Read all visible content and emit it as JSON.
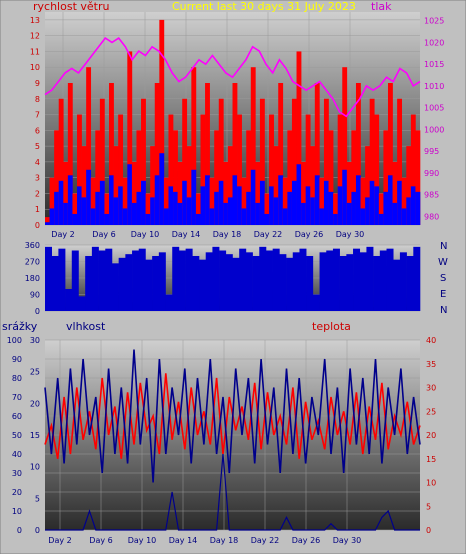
{
  "colors": {
    "frame": "#c0c0c0",
    "wind": "#ff0000",
    "wind_gust": "#0000ff",
    "pressure": "#ff00ff",
    "direction": "#0000cc",
    "humidity": "#00008b",
    "temperature": "#ff0000",
    "rain": "#00008b",
    "title": "#ffff00",
    "label_left": "#cc0000",
    "axis_text": "#000080"
  },
  "header": {
    "wind_label": "rychlost větru",
    "title": "Current last 30 days 31 July 2023",
    "pressure_label": "tlak"
  },
  "bottom_header": {
    "rain_label": "srážky",
    "humidity_label": "vlhkost",
    "temp_label": "teplota"
  },
  "compass": [
    "N",
    "W",
    "S",
    "E",
    "N"
  ],
  "chart_data": [
    {
      "type": "line",
      "name": "wind-pressure",
      "x_ticks": [
        "Day 2",
        "Day 6",
        "Day 10",
        "Day 14",
        "Day 18",
        "Day 22",
        "Day 26",
        "Day 30"
      ],
      "y_left_ticks": [
        0,
        1,
        2,
        3,
        4,
        5,
        6,
        7,
        8,
        9,
        10,
        11,
        12,
        13
      ],
      "y_left_range": [
        0,
        13.5
      ],
      "y_right_ticks": [
        980,
        985,
        990,
        995,
        1000,
        1005,
        1010,
        1015,
        1020,
        1025
      ],
      "y_right_range": [
        978,
        1027
      ],
      "series": [
        {
          "name": "rychlost větru",
          "axis": "left",
          "values": [
            0.5,
            3,
            6,
            8,
            4,
            9,
            2,
            7,
            5,
            10,
            3,
            6,
            8,
            2,
            9,
            5,
            7,
            3,
            11,
            4,
            6,
            8,
            2,
            5,
            9,
            13,
            3,
            7,
            6,
            4,
            8,
            5,
            10,
            2,
            7,
            9,
            3,
            6,
            8,
            4,
            5,
            9,
            7,
            3,
            6,
            10,
            4,
            8,
            2,
            7,
            5,
            9,
            3,
            6,
            8,
            11,
            4,
            7,
            5,
            9,
            3,
            8,
            6,
            2,
            7,
            10,
            4,
            6,
            9,
            3,
            5,
            8,
            7,
            2,
            6,
            9,
            4,
            8,
            3,
            5,
            7,
            6
          ]
        },
        {
          "name": "tlak",
          "axis": "right",
          "values": [
            1008,
            1009,
            1011,
            1013,
            1014,
            1013,
            1015,
            1017,
            1019,
            1021,
            1020,
            1021,
            1019,
            1016,
            1018,
            1017,
            1019,
            1018,
            1016,
            1013,
            1011,
            1012,
            1014,
            1016,
            1015,
            1017,
            1015,
            1013,
            1012,
            1014,
            1016,
            1019,
            1018,
            1015,
            1013,
            1016,
            1014,
            1011,
            1010,
            1009,
            1010,
            1011,
            1009,
            1007,
            1004,
            1003,
            1005,
            1007,
            1010,
            1009,
            1010,
            1012,
            1011,
            1014,
            1013,
            1010,
            1011
          ]
        }
      ]
    },
    {
      "type": "bar",
      "name": "wind-direction",
      "y_ticks": [
        0,
        90,
        180,
        270,
        360
      ],
      "y_range": [
        0,
        360
      ],
      "values": [
        350,
        300,
        340,
        120,
        330,
        80,
        300,
        350,
        330,
        340,
        260,
        290,
        310,
        330,
        340,
        280,
        300,
        320,
        90,
        350,
        330,
        340,
        300,
        280,
        320,
        350,
        330,
        310,
        290,
        340,
        320,
        300,
        350,
        330,
        340,
        310,
        290,
        320,
        340,
        300,
        90,
        320,
        330,
        340,
        300,
        310,
        340,
        320,
        350,
        300,
        330,
        340,
        280,
        320,
        300,
        350
      ]
    },
    {
      "type": "line",
      "name": "humidity-temp-rain",
      "x_ticks": [
        "Day 2",
        "Day 6",
        "Day 10",
        "Day 14",
        "Day 18",
        "Day 22",
        "Day 26",
        "Day 30"
      ],
      "y_rain_ticks": [
        0,
        5,
        10,
        15,
        20,
        25,
        30
      ],
      "y_rain_range": [
        0,
        30
      ],
      "y_humidity_ticks": [
        0,
        10,
        20,
        30,
        40,
        50,
        60,
        70,
        80,
        90,
        100
      ],
      "y_humidity_range": [
        0,
        100
      ],
      "y_temp_ticks": [
        0,
        5,
        10,
        15,
        20,
        25,
        30,
        35,
        40
      ],
      "y_temp_range": [
        0,
        40
      ],
      "series": [
        {
          "name": "vlhkost",
          "axis": "humidity",
          "values": [
            75,
            40,
            80,
            35,
            85,
            45,
            90,
            50,
            70,
            30,
            85,
            40,
            75,
            35,
            95,
            45,
            80,
            25,
            90,
            40,
            75,
            50,
            85,
            35,
            80,
            45,
            90,
            40,
            70,
            30,
            85,
            50,
            80,
            35,
            90,
            45,
            75,
            30,
            85,
            40,
            80,
            35,
            70,
            50,
            90,
            40,
            75,
            30,
            85,
            45,
            80,
            40,
            90,
            35,
            75,
            50,
            85,
            40,
            70,
            45
          ]
        },
        {
          "name": "teplota",
          "axis": "temp",
          "values": [
            18,
            22,
            15,
            28,
            16,
            30,
            19,
            25,
            17,
            32,
            20,
            26,
            15,
            29,
            18,
            31,
            21,
            24,
            16,
            33,
            19,
            27,
            17,
            30,
            20,
            25,
            18,
            32,
            16,
            28,
            21,
            26,
            19,
            31,
            17,
            29,
            20,
            24,
            18,
            30,
            15,
            27,
            19,
            23,
            17,
            28,
            20,
            25,
            18,
            29,
            16,
            26,
            19,
            31,
            17,
            24,
            20,
            27,
            18,
            22
          ]
        },
        {
          "name": "srážky",
          "axis": "rain",
          "values": [
            0,
            0,
            0,
            0,
            0,
            0,
            0,
            3,
            0,
            0,
            0,
            0,
            0,
            0,
            0,
            0,
            0,
            0,
            0,
            0,
            6,
            0,
            0,
            0,
            0,
            0,
            0,
            0,
            12,
            0,
            0,
            0,
            0,
            0,
            0,
            0,
            0,
            0,
            2,
            0,
            0,
            0,
            0,
            0,
            0,
            1,
            0,
            0,
            0,
            0,
            0,
            0,
            0,
            2,
            3,
            0,
            0,
            0,
            0,
            0
          ]
        }
      ]
    }
  ]
}
